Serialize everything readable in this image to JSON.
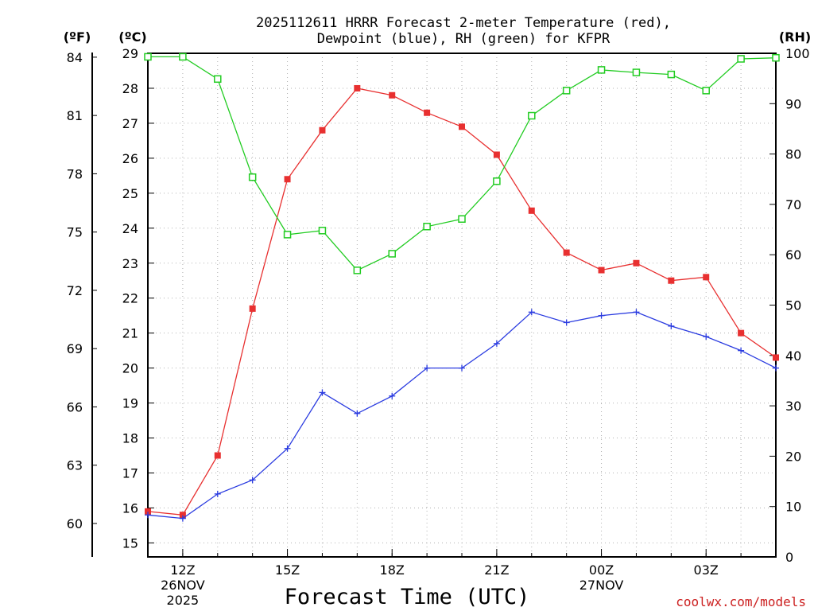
{
  "chart_data": {
    "type": "line",
    "title_line1": "2025112611 HRRR Forecast 2-meter Temperature (red),",
    "title_line2": "Dewpoint (blue), RH (green) for KFPR",
    "xlabel": "Forecast Time (UTC)",
    "credit": "coolwx.com/models",
    "units": {
      "fahrenheit": "(ºF)",
      "celsius": "(ºC)",
      "rh": "(RH)"
    },
    "x_hours": [
      11,
      12,
      13,
      14,
      15,
      16,
      17,
      18,
      19,
      20,
      21,
      22,
      23,
      24,
      25,
      26,
      27,
      28,
      29
    ],
    "xlim": [
      11,
      29
    ],
    "x_ticks": [
      {
        "hour": 12,
        "label": "12Z",
        "sub1": "26NOV",
        "sub2": "2025"
      },
      {
        "hour": 15,
        "label": "15Z",
        "sub1": "",
        "sub2": ""
      },
      {
        "hour": 18,
        "label": "18Z",
        "sub1": "",
        "sub2": ""
      },
      {
        "hour": 21,
        "label": "21Z",
        "sub1": "",
        "sub2": ""
      },
      {
        "hour": 24,
        "label": "00Z",
        "sub1": "27NOV",
        "sub2": ""
      },
      {
        "hour": 27,
        "label": "03Z",
        "sub1": "",
        "sub2": ""
      }
    ],
    "ylim_c": [
      14.6,
      29.0
    ],
    "ylim_rh": [
      0,
      100
    ],
    "celsius_ticks": [
      "15",
      "16",
      "17",
      "18",
      "19",
      "20",
      "21",
      "22",
      "23",
      "24",
      "25",
      "26",
      "27",
      "28",
      "29"
    ],
    "fahrenheit_ticks": [
      "60",
      "63",
      "66",
      "69",
      "72",
      "75",
      "78",
      "81",
      "84"
    ],
    "rh_ticks": [
      "0",
      "10",
      "20",
      "30",
      "40",
      "50",
      "60",
      "70",
      "80",
      "90",
      "100"
    ],
    "series": [
      {
        "name": "Temperature",
        "color": "#e83030",
        "marker": "filled-square",
        "values": [
          15.9,
          15.8,
          17.5,
          21.7,
          25.4,
          26.8,
          28.0,
          27.8,
          27.3,
          26.9,
          26.1,
          24.5,
          23.3,
          22.8,
          23.0,
          22.5,
          22.6,
          21.0,
          20.3
        ]
      },
      {
        "name": "Dewpoint",
        "color": "#2a3be0",
        "marker": "plus",
        "values": [
          15.8,
          15.7,
          16.4,
          16.8,
          17.7,
          19.3,
          18.7,
          19.2,
          20.0,
          20.0,
          20.7,
          21.6,
          21.3,
          21.5,
          21.6,
          21.2,
          20.9,
          20.5,
          20.0
        ]
      },
      {
        "name": "RH",
        "color": "#22cc22",
        "marker": "open-square",
        "values": [
          99.3,
          99.3,
          94.9,
          75.4,
          64.0,
          64.8,
          56.9,
          60.2,
          65.6,
          67.1,
          74.6,
          87.6,
          92.6,
          96.7,
          96.2,
          95.8,
          92.6,
          98.9,
          99.1
        ]
      }
    ]
  }
}
